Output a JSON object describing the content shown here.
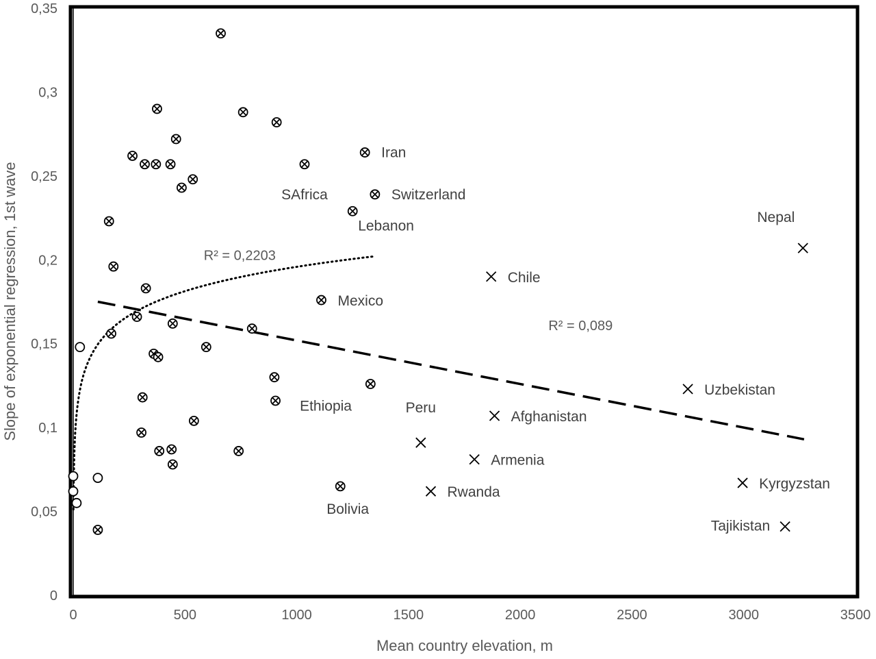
{
  "chart_data": {
    "type": "scatter",
    "xlabel": "Mean country elevation, m",
    "ylabel": "Slope of exponential regression, 1st wave",
    "xlim": [
      0,
      3500
    ],
    "ylim": [
      0,
      0.35
    ],
    "xticks": [
      0,
      500,
      1000,
      1500,
      2000,
      2500,
      3000,
      3500
    ],
    "xtick_labels": [
      "0",
      "500",
      "1000",
      "1500",
      "2000",
      "2500",
      "3000",
      "3500"
    ],
    "yticks": [
      0,
      0.05,
      0.1,
      0.15,
      0.2,
      0.25,
      0.3,
      0.35
    ],
    "ytick_labels": [
      "0",
      "0,05",
      "0,1",
      "0,15",
      "0,2",
      "0,25",
      "0,3",
      "0,35"
    ],
    "grid": false,
    "legend": "none",
    "series": [
      {
        "marker": "circle",
        "points": [
          {
            "x": 0,
            "y": 0.071,
            "label": ""
          },
          {
            "x": 0,
            "y": 0.062,
            "label": ""
          },
          {
            "x": 15,
            "y": 0.055,
            "label": ""
          },
          {
            "x": 30,
            "y": 0.148,
            "label": ""
          },
          {
            "x": 110,
            "y": 0.07,
            "label": ""
          }
        ]
      },
      {
        "marker": "circle-x",
        "points": [
          {
            "x": 660,
            "y": 0.335,
            "label": ""
          },
          {
            "x": 375,
            "y": 0.29,
            "label": ""
          },
          {
            "x": 760,
            "y": 0.288,
            "label": ""
          },
          {
            "x": 910,
            "y": 0.282,
            "label": ""
          },
          {
            "x": 460,
            "y": 0.272,
            "label": ""
          },
          {
            "x": 265,
            "y": 0.262,
            "label": ""
          },
          {
            "x": 320,
            "y": 0.257,
            "label": ""
          },
          {
            "x": 370,
            "y": 0.257,
            "label": ""
          },
          {
            "x": 435,
            "y": 0.257,
            "label": ""
          },
          {
            "x": 1035,
            "y": 0.257,
            "label": ""
          },
          {
            "x": 1305,
            "y": 0.264,
            "label": "Iran"
          },
          {
            "x": 535,
            "y": 0.248,
            "label": ""
          },
          {
            "x": 485,
            "y": 0.243,
            "label": ""
          },
          {
            "x": 1350,
            "y": 0.239,
            "label": "Switzerland"
          },
          {
            "x": 1250,
            "y": 0.229,
            "label": "Lebanon"
          },
          {
            "x": 160,
            "y": 0.223,
            "label": ""
          },
          {
            "x": 180,
            "y": 0.196,
            "label": ""
          },
          {
            "x": 325,
            "y": 0.183,
            "label": ""
          },
          {
            "x": 1110,
            "y": 0.176,
            "label": "Mexico"
          },
          {
            "x": 285,
            "y": 0.166,
            "label": ""
          },
          {
            "x": 445,
            "y": 0.162,
            "label": ""
          },
          {
            "x": 800,
            "y": 0.159,
            "label": ""
          },
          {
            "x": 170,
            "y": 0.156,
            "label": ""
          },
          {
            "x": 595,
            "y": 0.148,
            "label": ""
          },
          {
            "x": 360,
            "y": 0.144,
            "label": ""
          },
          {
            "x": 380,
            "y": 0.142,
            "label": ""
          },
          {
            "x": 900,
            "y": 0.13,
            "label": ""
          },
          {
            "x": 1330,
            "y": 0.126,
            "label": ""
          },
          {
            "x": 310,
            "y": 0.118,
            "label": ""
          },
          {
            "x": 905,
            "y": 0.116,
            "label": ""
          },
          {
            "x": 540,
            "y": 0.104,
            "label": ""
          },
          {
            "x": 305,
            "y": 0.097,
            "label": ""
          },
          {
            "x": 440,
            "y": 0.087,
            "label": ""
          },
          {
            "x": 385,
            "y": 0.086,
            "label": ""
          },
          {
            "x": 740,
            "y": 0.086,
            "label": ""
          },
          {
            "x": 445,
            "y": 0.078,
            "label": ""
          },
          {
            "x": 1195,
            "y": 0.065,
            "label": "Bolivia"
          },
          {
            "x": 110,
            "y": 0.039,
            "label": ""
          }
        ]
      },
      {
        "marker": "x",
        "points": [
          {
            "x": 3265,
            "y": 0.207,
            "label": "Nepal"
          },
          {
            "x": 1870,
            "y": 0.19,
            "label": "Chile"
          },
          {
            "x": 2750,
            "y": 0.123,
            "label": "Uzbekistan"
          },
          {
            "x": 1885,
            "y": 0.107,
            "label": "Afghanistan"
          },
          {
            "x": 1555,
            "y": 0.091,
            "label": ""
          },
          {
            "x": 1795,
            "y": 0.081,
            "label": "Armenia"
          },
          {
            "x": 2995,
            "y": 0.067,
            "label": "Kyrgyzstan"
          },
          {
            "x": 1600,
            "y": 0.062,
            "label": "Rwanda"
          },
          {
            "x": 3185,
            "y": 0.041,
            "label": "Tajikistan"
          }
        ]
      }
    ],
    "free_labels": [
      {
        "text": "SAfrica",
        "x": 1035,
        "y": 0.236
      },
      {
        "text": "Ethiopia",
        "x": 1130,
        "y": 0.11
      },
      {
        "text": "Peru",
        "x": 1555,
        "y": 0.109
      }
    ],
    "trendlines": [
      {
        "kind": "logarithmic",
        "style": "dotted",
        "x_range": [
          1,
          1340
        ],
        "r2_text": "R² = 0,2203",
        "r2_at": {
          "x": 745,
          "y": 0.2
        }
      },
      {
        "kind": "linear",
        "style": "dashed",
        "x_range": [
          110,
          3270
        ],
        "y_at_start": 0.175,
        "y_at_end": 0.093,
        "r2_text": "R² = 0,089",
        "r2_at": {
          "x": 2270,
          "y": 0.158
        }
      }
    ]
  }
}
